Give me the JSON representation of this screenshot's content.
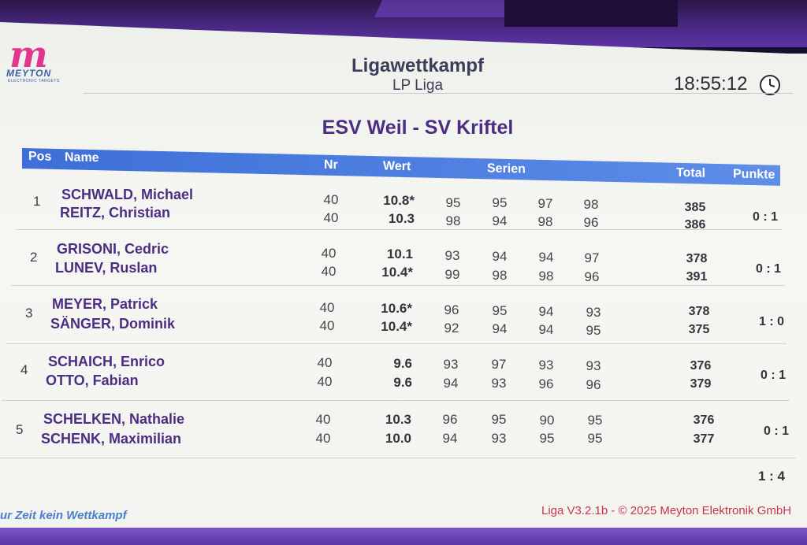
{
  "app": {
    "logo_text": "MEYTON",
    "logo_sub": "ELECTRONIC TARGETS",
    "title": "Ligawettkampf",
    "subtitle": "LP Liga",
    "clock": "18:55:12"
  },
  "match": {
    "title": "ESV Weil - SV Kriftel"
  },
  "columns": {
    "pos": "Pos",
    "name": "Name",
    "nr": "Nr",
    "wert": "Wert",
    "serien": "Serien",
    "total": "Total",
    "punkte": "Punkte"
  },
  "pairs": [
    {
      "pos": "1",
      "result": "0 : 1",
      "shooters": [
        {
          "name": "SCHWALD, Michael",
          "nr": "40",
          "wert": "10.8*",
          "serien": [
            "95",
            "95",
            "97",
            "98"
          ],
          "total": "385"
        },
        {
          "name": "REITZ, Christian",
          "nr": "40",
          "wert": "10.3",
          "serien": [
            "98",
            "94",
            "98",
            "96"
          ],
          "total": "386"
        }
      ]
    },
    {
      "pos": "2",
      "result": "0 : 1",
      "shooters": [
        {
          "name": "GRISONI, Cedric",
          "nr": "40",
          "wert": "10.1",
          "serien": [
            "93",
            "94",
            "94",
            "97"
          ],
          "total": "378"
        },
        {
          "name": "LUNEV, Ruslan",
          "nr": "40",
          "wert": "10.4*",
          "serien": [
            "99",
            "98",
            "98",
            "96"
          ],
          "total": "391"
        }
      ]
    },
    {
      "pos": "3",
      "result": "1 : 0",
      "shooters": [
        {
          "name": "MEYER, Patrick",
          "nr": "40",
          "wert": "10.6*",
          "serien": [
            "96",
            "95",
            "94",
            "93"
          ],
          "total": "378"
        },
        {
          "name": "SÄNGER, Dominik",
          "nr": "40",
          "wert": "10.4*",
          "serien": [
            "92",
            "94",
            "94",
            "95"
          ],
          "total": "375"
        }
      ]
    },
    {
      "pos": "4",
      "result": "0 : 1",
      "shooters": [
        {
          "name": "SCHAICH, Enrico",
          "nr": "40",
          "wert": "9.6",
          "serien": [
            "93",
            "97",
            "93",
            "93"
          ],
          "total": "376"
        },
        {
          "name": "OTTO, Fabian",
          "nr": "40",
          "wert": "9.6",
          "serien": [
            "94",
            "93",
            "96",
            "96"
          ],
          "total": "379"
        }
      ]
    },
    {
      "pos": "5",
      "result": "0 : 1",
      "shooters": [
        {
          "name": "SCHELKEN, Nathalie",
          "nr": "40",
          "wert": "10.3",
          "serien": [
            "96",
            "95",
            "90",
            "95"
          ],
          "total": "376"
        },
        {
          "name": "SCHENK, Maximilian",
          "nr": "40",
          "wert": "10.0",
          "serien": [
            "94",
            "93",
            "95",
            "95"
          ],
          "total": "377"
        }
      ]
    }
  ],
  "final_score": "1 : 4",
  "status": "ur Zeit kein Wettkampf",
  "footer": "Liga V3.2.1b - © 2025 Meyton Elektronik GmbH"
}
